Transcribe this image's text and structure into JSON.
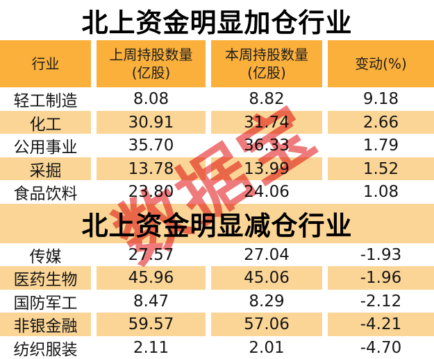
{
  "colors": {
    "header_bg": "#fbb03c",
    "stripe_bg": "#fbd596",
    "title_color": "#000000",
    "watermark_color": "#ea5456"
  },
  "watermark": {
    "text": "数据宝"
  },
  "table": {
    "headers": [
      {
        "line1": "行业",
        "line2": ""
      },
      {
        "line1": "上周持股数量",
        "line2": "(亿股)"
      },
      {
        "line1": "本周持股数量",
        "line2": "(亿股)"
      },
      {
        "line1": "变动(%)",
        "line2": ""
      }
    ],
    "sections": [
      {
        "title": "北上资金明显加仓行业",
        "rows": [
          [
            "轻工制造",
            "8.08",
            "8.82",
            "9.18"
          ],
          [
            "化工",
            "30.91",
            "31.74",
            "2.66"
          ],
          [
            "公用事业",
            "35.70",
            "36.33",
            "1.79"
          ],
          [
            "采掘",
            "13.78",
            "13.99",
            "1.52"
          ],
          [
            "食品饮料",
            "23.80",
            "24.06",
            "1.08"
          ]
        ]
      },
      {
        "title": "北上资金明显减仓行业",
        "rows": [
          [
            "传媒",
            "27.57",
            "27.04",
            "-1.93"
          ],
          [
            "医药生物",
            "45.96",
            "45.06",
            "-1.96"
          ],
          [
            "国防军工",
            "8.47",
            "8.29",
            "-2.12"
          ],
          [
            "非银金融",
            "59.57",
            "57.06",
            "-4.21"
          ],
          [
            "纺织服装",
            "2.11",
            "2.01",
            "-4.70"
          ]
        ]
      }
    ]
  },
  "chart_data": [
    {
      "type": "table",
      "title": "北上资金明显加仓行业",
      "columns": [
        "行业",
        "上周持股数量(亿股)",
        "本周持股数量(亿股)",
        "变动(%)"
      ],
      "rows": [
        [
          "轻工制造",
          8.08,
          8.82,
          9.18
        ],
        [
          "化工",
          30.91,
          31.74,
          2.66
        ],
        [
          "公用事业",
          35.7,
          36.33,
          1.79
        ],
        [
          "采掘",
          13.78,
          13.99,
          1.52
        ],
        [
          "食品饮料",
          23.8,
          24.06,
          1.08
        ]
      ],
      "annotations": [
        "数据宝 watermark, red, diagonal"
      ]
    },
    {
      "type": "table",
      "title": "北上资金明显减仓行业",
      "columns": [
        "行业",
        "上周持股数量(亿股)",
        "本周持股数量(亿股)",
        "变动(%)"
      ],
      "rows": [
        [
          "传媒",
          27.57,
          27.04,
          -1.93
        ],
        [
          "医药生物",
          45.96,
          45.06,
          -1.96
        ],
        [
          "国防军工",
          8.47,
          8.29,
          -2.12
        ],
        [
          "非银金融",
          59.57,
          57.06,
          -4.21
        ],
        [
          "纺织服装",
          2.11,
          2.01,
          -4.7
        ]
      ],
      "annotations": []
    }
  ]
}
